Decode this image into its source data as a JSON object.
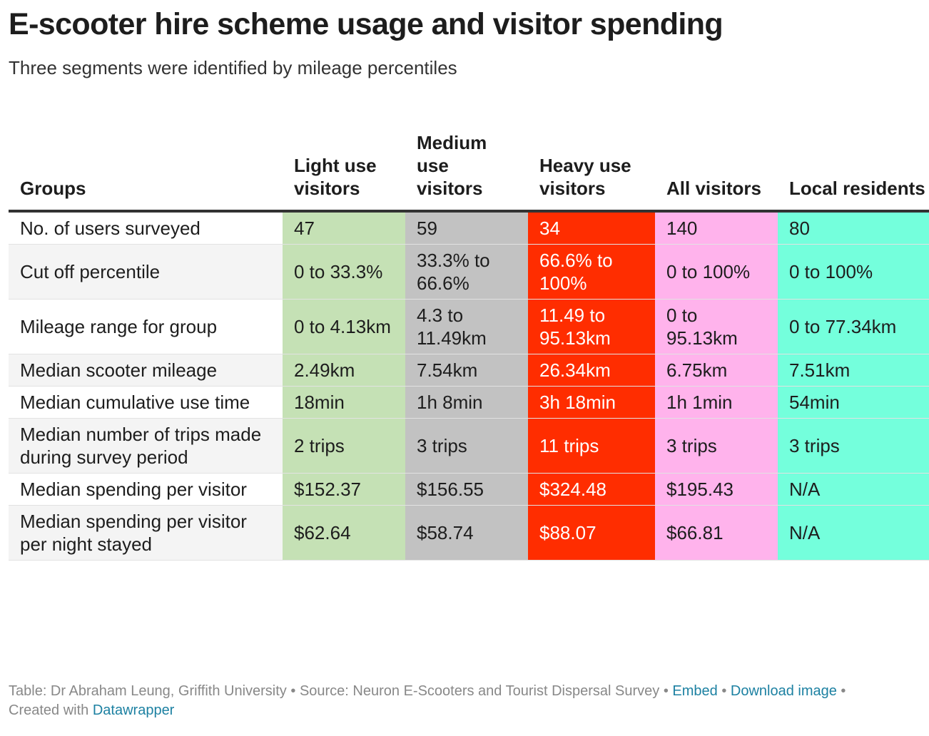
{
  "header": {
    "title": "E-scooter hire scheme usage and visitor spending",
    "subtitle": "Three segments were identified by mileage percentiles"
  },
  "colors": {
    "light": "#c5e1b5",
    "medium": "#c2c2c2",
    "heavy": "#ff2d00",
    "all": "#ffb3ec",
    "local": "#74ffdc",
    "link": "#1d81a2"
  },
  "chart_data": {
    "type": "table",
    "columns": [
      "Groups",
      "Light use visitors",
      "Medium use visitors",
      "Heavy use visitors",
      "All visitors",
      "Local residents"
    ],
    "rows": [
      [
        "No. of users surveyed",
        "47",
        "59",
        "34",
        "140",
        "80"
      ],
      [
        "Cut off percentile",
        "0 to 33.3%",
        "33.3% to 66.6%",
        "66.6% to 100%",
        "0 to 100%",
        "0 to 100%"
      ],
      [
        "Mileage range for group",
        "0 to 4.13km",
        "4.3 to 11.49km",
        "11.49 to 95.13km",
        "0 to 95.13km",
        "0 to 77.34km"
      ],
      [
        "Median scooter mileage",
        "2.49km",
        "7.54km",
        "26.34km",
        "6.75km",
        "7.51km"
      ],
      [
        "Median cumulative use time",
        "18min",
        "1h 8min",
        "3h 18min",
        "1h 1min",
        "54min"
      ],
      [
        "Median number of trips made during survey period",
        "2 trips",
        "3 trips",
        "11 trips",
        "3 trips",
        "3 trips"
      ],
      [
        "Median spending per visitor",
        "$152.37",
        "$156.55",
        "$324.48",
        "$195.43",
        "N/A"
      ],
      [
        "Median spending per visitor per night stayed",
        "$62.64",
        "$58.74",
        "$88.07",
        "$66.81",
        "N/A"
      ]
    ]
  },
  "footer": {
    "credit": "Table: Dr Abraham Leung, Griffith University",
    "source": "Source: Neuron E-Scooters and Tourist Dispersal Survey",
    "embed": "Embed",
    "download": "Download image",
    "created_with": "Created with",
    "datawrapper": "Datawrapper"
  }
}
